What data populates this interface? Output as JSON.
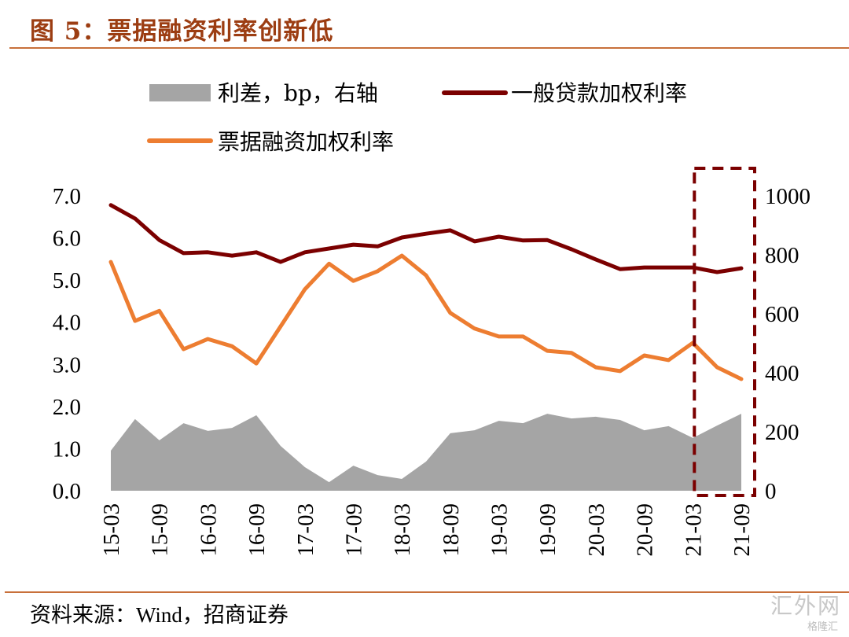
{
  "header": {
    "title": "图 5：票据融资利率创新低"
  },
  "footer": {
    "source": "资料来源：Wind，招商证券",
    "watermark": "汇外网",
    "watermark_overlay": "格隆汇"
  },
  "colors": {
    "loan_rate": "#7b0000",
    "bill_rate": "#ed7d31",
    "spread": "#a5a5a5",
    "highlight_box": "#7b0000",
    "title": "#9c3d12",
    "rule": "#c8703a"
  },
  "chart_data": {
    "type": "line+area",
    "title": "票据融资利率创新低",
    "xlabel": "",
    "ylabel_left": "",
    "ylabel_right": "",
    "legend_position": "top",
    "grid": false,
    "x": [
      "15-03",
      "15-06",
      "15-09",
      "15-12",
      "16-03",
      "16-06",
      "16-09",
      "16-12",
      "17-03",
      "17-06",
      "17-09",
      "17-12",
      "18-03",
      "18-06",
      "18-09",
      "18-12",
      "19-03",
      "19-06",
      "19-09",
      "19-12",
      "20-03",
      "20-06",
      "20-09",
      "20-12",
      "21-03",
      "21-06",
      "21-09"
    ],
    "x_tick_labels": [
      "15-03",
      "15-09",
      "16-03",
      "16-09",
      "17-03",
      "17-09",
      "18-03",
      "18-09",
      "19-03",
      "19-09",
      "20-03",
      "20-09",
      "21-03",
      "21-09"
    ],
    "y_left": {
      "range": [
        0,
        7
      ],
      "ticks": [
        "0.0",
        "1.0",
        "2.0",
        "3.0",
        "4.0",
        "5.0",
        "6.0",
        "7.0"
      ]
    },
    "y_right": {
      "range": [
        0,
        1000
      ],
      "ticks": [
        "0",
        "200",
        "400",
        "600",
        "800",
        "1000"
      ]
    },
    "series": [
      {
        "name": "利差，bp，右轴",
        "type": "area",
        "axis": "right",
        "values": [
          136,
          243,
          171,
          229,
          203,
          213,
          256,
          152,
          80,
          29,
          85,
          53,
          40,
          99,
          195,
          205,
          237,
          229,
          261,
          245,
          251,
          240,
          205,
          219,
          179,
          221,
          261
        ]
      },
      {
        "name": "一般贷款加权利率",
        "type": "line",
        "axis": "left",
        "values": [
          6.78,
          6.46,
          5.95,
          5.64,
          5.66,
          5.58,
          5.66,
          5.43,
          5.66,
          5.75,
          5.84,
          5.8,
          6.01,
          6.1,
          6.18,
          5.92,
          6.03,
          5.94,
          5.95,
          5.73,
          5.49,
          5.26,
          5.3,
          5.3,
          5.3,
          5.19,
          5.28
        ]
      },
      {
        "name": "票据融资加权利率",
        "type": "line",
        "axis": "left",
        "values": [
          5.43,
          4.03,
          4.27,
          3.36,
          3.6,
          3.43,
          3.02,
          3.9,
          4.78,
          5.39,
          4.98,
          5.21,
          5.58,
          5.11,
          4.22,
          3.85,
          3.66,
          3.66,
          3.32,
          3.27,
          2.93,
          2.84,
          3.21,
          3.1,
          3.51,
          2.93,
          2.65
        ]
      }
    ],
    "annotations": [
      {
        "type": "dashed-box",
        "from": "21-03",
        "to": "21-09",
        "note": "highlight of latest period"
      }
    ]
  }
}
